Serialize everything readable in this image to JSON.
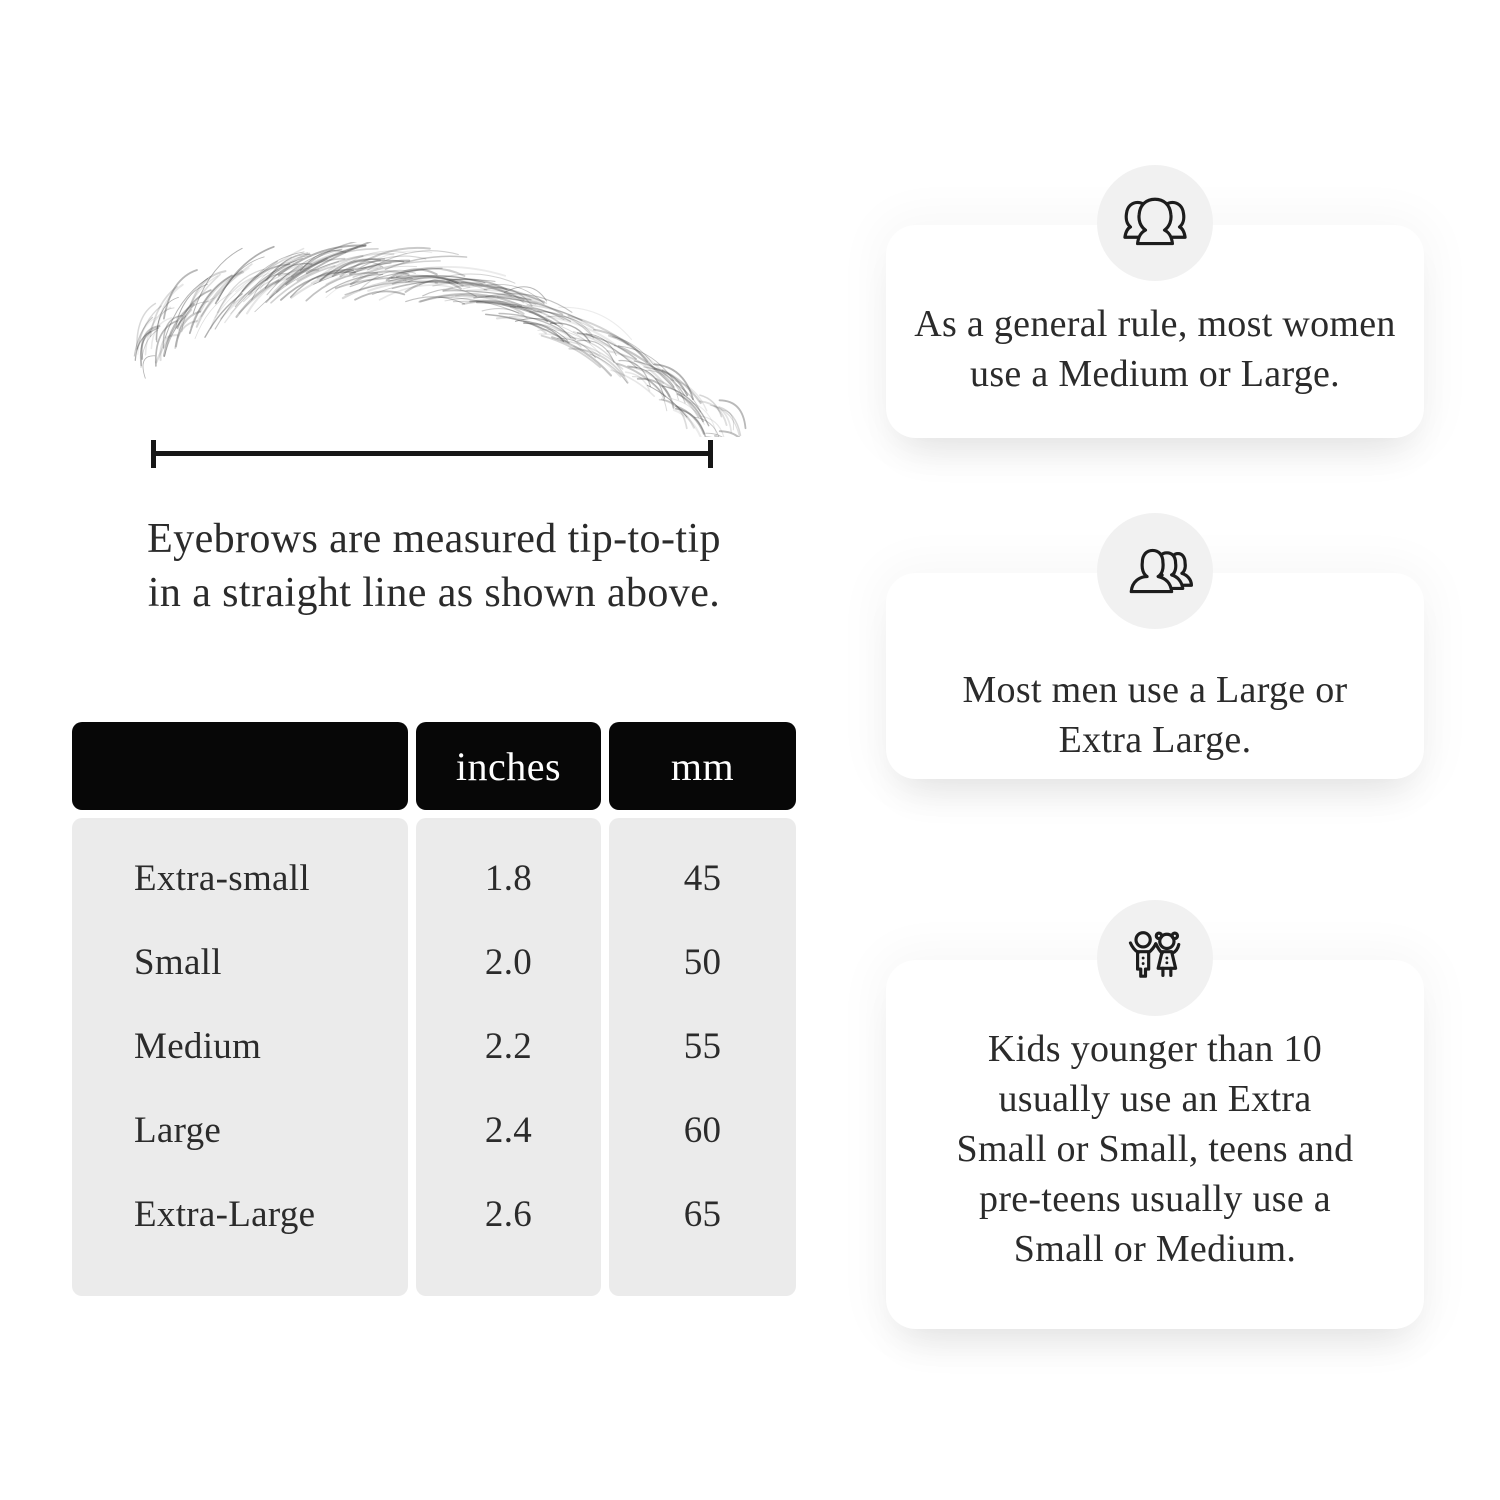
{
  "measure_diagram": {
    "illustration": "eyebrow-sketch-illustration",
    "caption_lines": [
      "Eyebrows are measured tip-to-tip",
      "in a straight line as shown above."
    ]
  },
  "size_table": {
    "columns": [
      "",
      "inches",
      "mm"
    ],
    "rows": [
      {
        "size": "Extra-small",
        "inches": "1.8",
        "mm": "45"
      },
      {
        "size": "Small",
        "inches": "2.0",
        "mm": "50"
      },
      {
        "size": "Medium",
        "inches": "2.2",
        "mm": "55"
      },
      {
        "size": "Large",
        "inches": "2.4",
        "mm": "60"
      },
      {
        "size": "Extra-Large",
        "inches": "2.6",
        "mm": "65"
      }
    ]
  },
  "guide_cards": [
    {
      "icon": "women-group-icon",
      "lines": [
        "As a general rule, most women",
        "use a Medium or Large."
      ]
    },
    {
      "icon": "men-group-icon",
      "lines": [
        "Most men use a Large or",
        "Extra Large."
      ]
    },
    {
      "icon": "kids-icon",
      "lines": [
        "Kids younger than 10",
        "usually use an Extra",
        "Small or Small, teens and",
        "pre-teens usually use a",
        "Small or Medium."
      ]
    }
  ],
  "colors": {
    "text": "#2b2b2b",
    "line": "#161616",
    "table_header_bg": "#070707",
    "table_header_text": "#ffffff",
    "table_body_bg": "#ebebeb",
    "card_bg": "#ffffff",
    "badge_bg": "#f1f1f1",
    "icon_stroke": "#1d1d1d",
    "brow_stroke": "#474747"
  }
}
